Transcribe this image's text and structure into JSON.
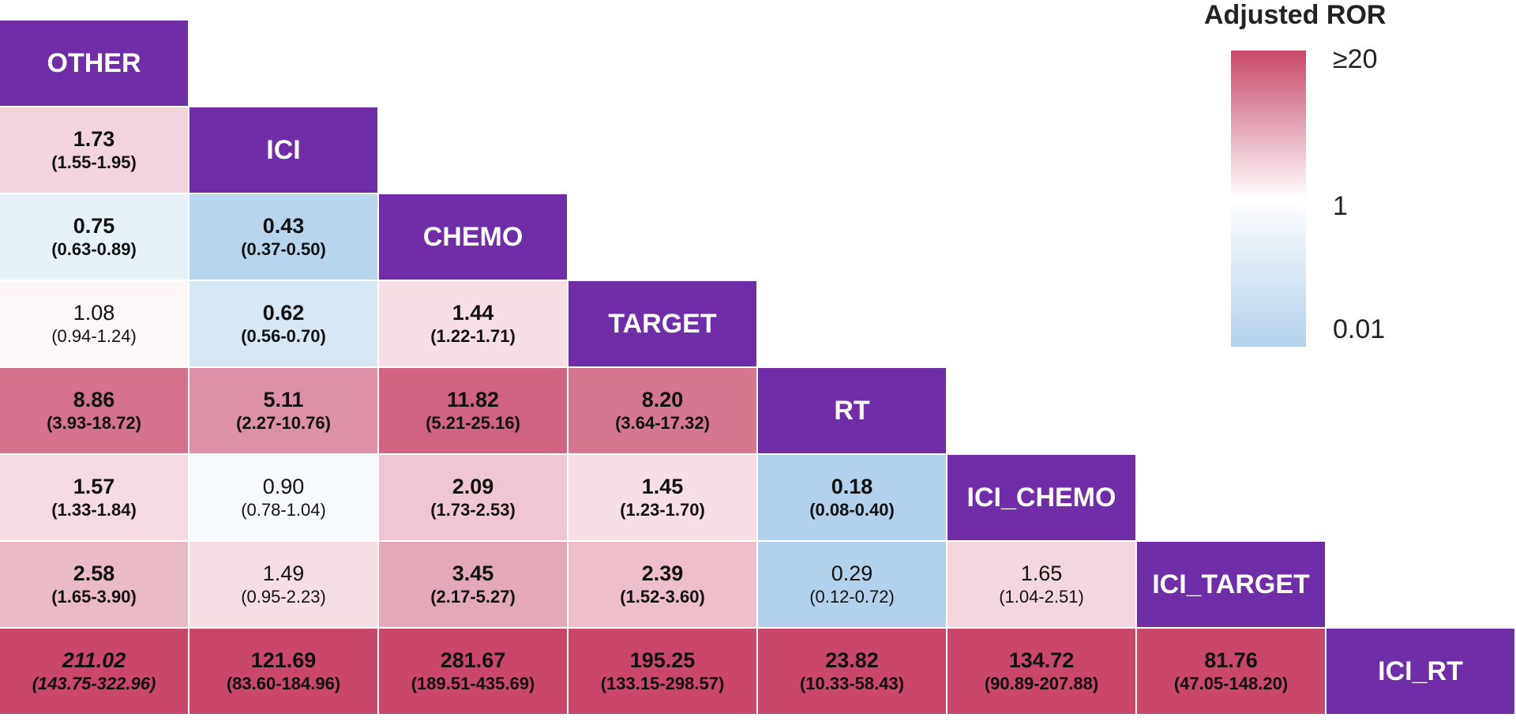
{
  "chart_data": {
    "type": "heatmap",
    "title": "",
    "xlabel": "",
    "ylabel": "",
    "categories": [
      "OTHER",
      "ICI",
      "CHEMO",
      "TARGET",
      "RT",
      "ICI_CHEMO",
      "ICI_TARGET",
      "ICI_RT"
    ],
    "legend": {
      "title": "Adjusted ROR",
      "ticks": [
        "≥20",
        "1",
        "0.01"
      ],
      "scale": "log",
      "range": [
        0.01,
        20
      ],
      "colors": {
        "low": "#b3d1ea",
        "mid": "#ffffff",
        "high": "#c8476a"
      }
    },
    "diagonal_color": "#6f2da8",
    "cells": [
      {
        "row": "ICI",
        "col": "OTHER",
        "value": 1.73,
        "ci": "(1.55-1.95)",
        "style": "bold"
      },
      {
        "row": "CHEMO",
        "col": "OTHER",
        "value": 0.75,
        "ci": "(0.63-0.89)",
        "style": "bold"
      },
      {
        "row": "CHEMO",
        "col": "ICI",
        "value": 0.43,
        "ci": "(0.37-0.50)",
        "style": "bold"
      },
      {
        "row": "TARGET",
        "col": "OTHER",
        "value": 1.08,
        "ci": "(0.94-1.24)",
        "style": "normal"
      },
      {
        "row": "TARGET",
        "col": "ICI",
        "value": 0.62,
        "ci": "(0.56-0.70)",
        "style": "bold"
      },
      {
        "row": "TARGET",
        "col": "CHEMO",
        "value": 1.44,
        "ci": "(1.22-1.71)",
        "style": "bold"
      },
      {
        "row": "RT",
        "col": "OTHER",
        "value": 8.86,
        "ci": "(3.93-18.72)",
        "style": "bold"
      },
      {
        "row": "RT",
        "col": "ICI",
        "value": 5.11,
        "ci": "(2.27-10.76)",
        "style": "bold"
      },
      {
        "row": "RT",
        "col": "CHEMO",
        "value": 11.82,
        "ci": "(5.21-25.16)",
        "style": "bold"
      },
      {
        "row": "RT",
        "col": "TARGET",
        "value": 8.2,
        "ci": "(3.64-17.32)",
        "style": "bold"
      },
      {
        "row": "ICI_CHEMO",
        "col": "OTHER",
        "value": 1.57,
        "ci": "(1.33-1.84)",
        "style": "bold"
      },
      {
        "row": "ICI_CHEMO",
        "col": "ICI",
        "value": 0.9,
        "ci": "(0.78-1.04)",
        "style": "normal"
      },
      {
        "row": "ICI_CHEMO",
        "col": "CHEMO",
        "value": 2.09,
        "ci": "(1.73-2.53)",
        "style": "bold"
      },
      {
        "row": "ICI_CHEMO",
        "col": "TARGET",
        "value": 1.45,
        "ci": "(1.23-1.70)",
        "style": "bold"
      },
      {
        "row": "ICI_CHEMO",
        "col": "RT",
        "value": 0.18,
        "ci": "(0.08-0.40)",
        "style": "bold"
      },
      {
        "row": "ICI_TARGET",
        "col": "OTHER",
        "value": 2.58,
        "ci": "(1.65-3.90)",
        "style": "bold"
      },
      {
        "row": "ICI_TARGET",
        "col": "ICI",
        "value": 1.49,
        "ci": "(0.95-2.23)",
        "style": "normal"
      },
      {
        "row": "ICI_TARGET",
        "col": "CHEMO",
        "value": 3.45,
        "ci": "(2.17-5.27)",
        "style": "bold"
      },
      {
        "row": "ICI_TARGET",
        "col": "TARGET",
        "value": 2.39,
        "ci": "(1.52-3.60)",
        "style": "bold"
      },
      {
        "row": "ICI_TARGET",
        "col": "RT",
        "value": 0.29,
        "ci": "(0.12-0.72)",
        "style": "normal"
      },
      {
        "row": "ICI_TARGET",
        "col": "ICI_CHEMO",
        "value": 1.65,
        "ci": "(1.04-2.51)",
        "style": "normal"
      },
      {
        "row": "ICI_RT",
        "col": "OTHER",
        "value": 211.02,
        "ci": "(143.75-322.96)",
        "style": "bold-italic"
      },
      {
        "row": "ICI_RT",
        "col": "ICI",
        "value": 121.69,
        "ci": "(83.60-184.96)",
        "style": "bold"
      },
      {
        "row": "ICI_RT",
        "col": "CHEMO",
        "value": 281.67,
        "ci": "(189.51-435.69)",
        "style": "bold"
      },
      {
        "row": "ICI_RT",
        "col": "TARGET",
        "value": 195.25,
        "ci": "(133.15-298.57)",
        "style": "bold"
      },
      {
        "row": "ICI_RT",
        "col": "RT",
        "value": 23.82,
        "ci": "(10.33-58.43)",
        "style": "bold"
      },
      {
        "row": "ICI_RT",
        "col": "ICI_CHEMO",
        "value": 134.72,
        "ci": "(90.89-207.88)",
        "style": "bold"
      },
      {
        "row": "ICI_RT",
        "col": "ICI_TARGET",
        "value": 81.76,
        "ci": "(47.05-148.20)",
        "style": "bold"
      }
    ]
  }
}
